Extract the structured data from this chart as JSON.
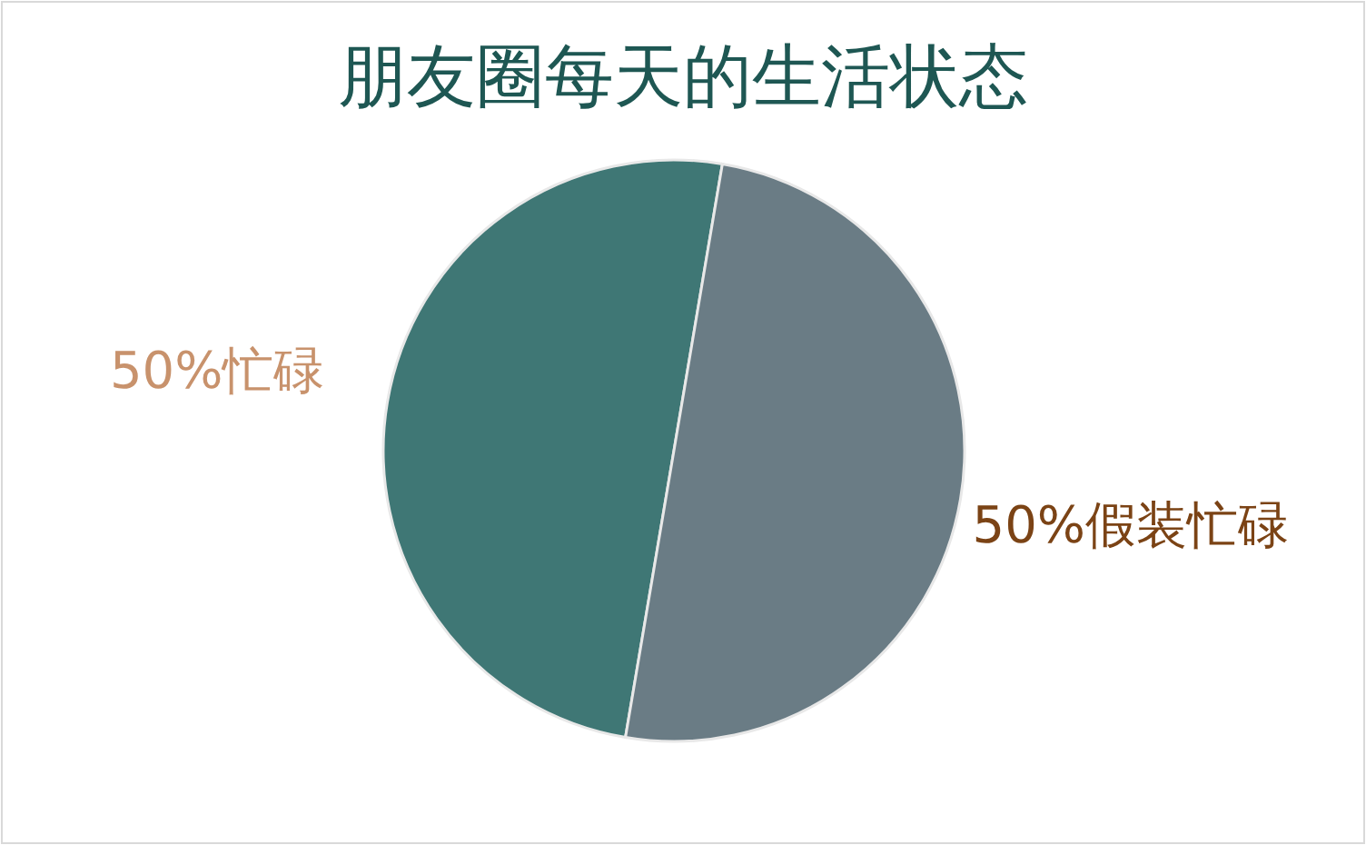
{
  "chart_data": {
    "type": "pie",
    "title": "朋友圈每天的生活状态",
    "categories": [
      "忙碌",
      "假装忙碌"
    ],
    "values": [
      50,
      50
    ],
    "value_labels": [
      "50%",
      "50%"
    ],
    "colors": [
      "#3f7775",
      "#6a7c85"
    ],
    "legend": false
  }
}
